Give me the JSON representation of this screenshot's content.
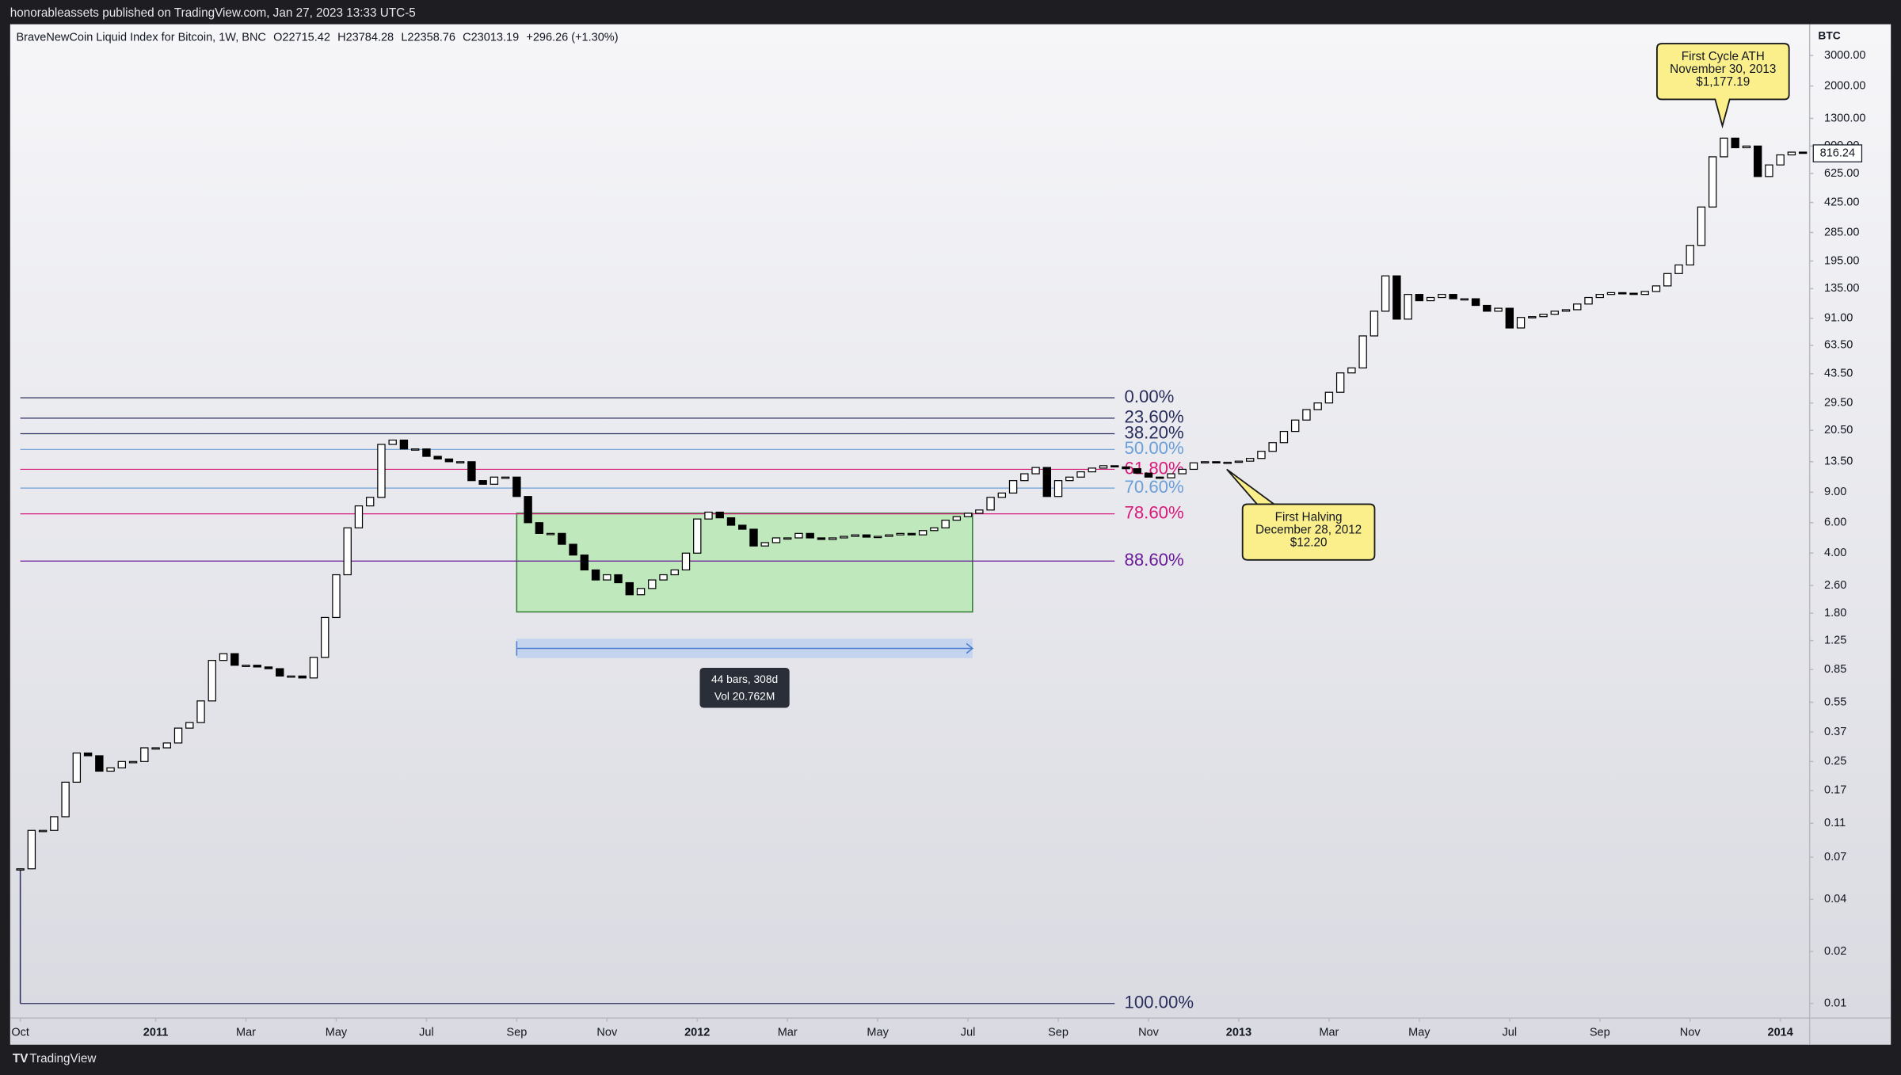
{
  "header": "honorableassets published on TradingView.com, Jan 27, 2023 13:33 UTC-5",
  "footer": "TradingView",
  "chart_data": {
    "type": "candlestick",
    "title": "BraveNewCoin Liquid Index for Bitcoin, 1W, BNC",
    "ohlc_legend": [
      "O22715.42",
      "H23784.28",
      "L22358.76",
      "C23013.19",
      "+296.26 (+1.30%)"
    ],
    "y_axis_label": "BTC",
    "log_scale": true,
    "grid": false,
    "up_color": "#ffffff",
    "down_color": "#000000",
    "series": [
      {
        "values": [
          0.06,
          0.1,
          0.1,
          0.12,
          0.19,
          0.28,
          0.27,
          0.22,
          0.23,
          0.25,
          0.25,
          0.3,
          0.3,
          0.32,
          0.39,
          0.42,
          0.56,
          0.96,
          1.05,
          0.9,
          0.9,
          0.88,
          0.86,
          0.78,
          0.78,
          0.76,
          1.0,
          1.7,
          3.0,
          5.6,
          7.5,
          8.4,
          17,
          18,
          16,
          16,
          14.5,
          14,
          13.5,
          13.5,
          10.5,
          10,
          11,
          11,
          8.5,
          6.0,
          5.2,
          5.2,
          4.5,
          3.9,
          3.2,
          2.8,
          3.0,
          2.7,
          2.3,
          2.5,
          2.8,
          3.0,
          3.2,
          4.0,
          6.3,
          6.9,
          6.4,
          5.8,
          5.5,
          4.4,
          4.6,
          4.9,
          4.9,
          5.2,
          4.9,
          4.8,
          4.9,
          5.0,
          5.1,
          4.95,
          5.0,
          5.1,
          5.2,
          5.1,
          5.4,
          5.6,
          6.2,
          6.5,
          6.8,
          7.1,
          8.4,
          8.9,
          10.5,
          11.5,
          12.5,
          8.5,
          10.5,
          11.0,
          11.8,
          12.4,
          12.8,
          12.6,
          12.3,
          11.6,
          11.0,
          10.9,
          11.5,
          12.2,
          13.3,
          13.5,
          13.4,
          13.4,
          13.6,
          14.1,
          15.5,
          17.4,
          20.2,
          23.5,
          27,
          29.5,
          34,
          44,
          47,
          72,
          100,
          160,
          90,
          125,
          115,
          120,
          125,
          118,
          118,
          108,
          100,
          104,
          80,
          92,
          93,
          96,
          100,
          102,
          110,
          120,
          125,
          128,
          127,
          125,
          130,
          140,
          165,
          185,
          240,
          400,
          780,
          1000,
          880,
          900,
          600,
          700,
          800,
          830,
          816.24
        ]
      }
    ],
    "xlim": [
      -0.9,
      158.6
    ],
    "xticks": [
      {
        "value": 0,
        "label": "Oct"
      },
      {
        "value": 12,
        "label": "2011"
      },
      {
        "value": 20,
        "label": "Mar"
      },
      {
        "value": 28,
        "label": "May"
      },
      {
        "value": 36,
        "label": "Jul"
      },
      {
        "value": 44,
        "label": "Sep"
      },
      {
        "value": 52,
        "label": "Nov"
      },
      {
        "value": 60,
        "label": "2012"
      },
      {
        "value": 68,
        "label": "Mar"
      },
      {
        "value": 76,
        "label": "May"
      },
      {
        "value": 84,
        "label": "Jul"
      },
      {
        "value": 92,
        "label": "Sep"
      },
      {
        "value": 100,
        "label": "Nov"
      },
      {
        "value": 108,
        "label": "2013"
      },
      {
        "value": 116,
        "label": "Mar"
      },
      {
        "value": 124,
        "label": "May"
      },
      {
        "value": 132,
        "label": "Jul"
      },
      {
        "value": 140,
        "label": "Sep"
      },
      {
        "value": 148,
        "label": "Nov"
      },
      {
        "value": 156,
        "label": "2014"
      }
    ],
    "ylim": [
      0.00824,
      4550
    ],
    "yticks": [
      {
        "value": 3000,
        "label": "3000.00"
      },
      {
        "value": 2000,
        "label": "2000.00"
      },
      {
        "value": 1300,
        "label": "1300.00"
      },
      {
        "value": 900,
        "label": "900.00"
      },
      {
        "value": 625,
        "label": "625.00"
      },
      {
        "value": 425,
        "label": "425.00"
      },
      {
        "value": 285,
        "label": "285.00"
      },
      {
        "value": 195,
        "label": "195.00"
      },
      {
        "value": 135,
        "label": "135.00"
      },
      {
        "value": 91,
        "label": "91.00"
      },
      {
        "value": 63.5,
        "label": "63.50"
      },
      {
        "value": 43.5,
        "label": "43.50"
      },
      {
        "value": 29.5,
        "label": "29.50"
      },
      {
        "value": 20.5,
        "label": "20.50"
      },
      {
        "value": 13.5,
        "label": "13.50"
      },
      {
        "value": 9,
        "label": "9.00"
      },
      {
        "value": 6,
        "label": "6.00"
      },
      {
        "value": 4,
        "label": "4.00"
      },
      {
        "value": 2.6,
        "label": "2.60"
      },
      {
        "value": 1.8,
        "label": "1.80"
      },
      {
        "value": 1.25,
        "label": "1.25"
      },
      {
        "value": 0.85,
        "label": "0.85"
      },
      {
        "value": 0.55,
        "label": "0.55"
      },
      {
        "value": 0.37,
        "label": "0.37"
      },
      {
        "value": 0.25,
        "label": "0.25"
      },
      {
        "value": 0.17,
        "label": "0.17"
      },
      {
        "value": 0.11,
        "label": "0.11"
      },
      {
        "value": 0.07,
        "label": "0.07"
      },
      {
        "value": 0.04,
        "label": "0.04"
      },
      {
        "value": 0.02,
        "label": "0.02"
      },
      {
        "value": 0.01,
        "label": "0.01"
      }
    ],
    "fib_x_range": [
      0,
      97
    ],
    "fib_levels": [
      {
        "label": "0.00%",
        "value": 31.6,
        "color": "#2a2e5c"
      },
      {
        "label": "23.60%",
        "value": 24.1,
        "color": "#2a2e5c"
      },
      {
        "label": "38.20%",
        "value": 19.6,
        "color": "#2a2e5c"
      },
      {
        "label": "50.00%",
        "value": 15.9,
        "color": "#6a9fd8"
      },
      {
        "label": "61.80%",
        "value": 12.2,
        "color": "#d81b7a"
      },
      {
        "label": "70.60%",
        "value": 9.5,
        "color": "#6a9fd8"
      },
      {
        "label": "78.60%",
        "value": 6.75,
        "color": "#d81b7a"
      },
      {
        "label": "88.60%",
        "value": 3.6,
        "color": "#6a1b9a"
      },
      {
        "label": "100.00%",
        "value": 0.01,
        "color": "#2a2e5c"
      }
    ],
    "range_box": {
      "x": [
        44,
        84.4
      ],
      "y": [
        1.83,
        6.8
      ],
      "color": "#bfe8bc"
    },
    "measure": {
      "lines": [
        "44 bars, 308d",
        "Vol 20.762M"
      ]
    },
    "annotations": [
      {
        "lines": [
          "First Cycle ATH",
          "November 30, 2013"
        ],
        "price": {
          "value": 1177.19,
          "label": "$1,177.19"
        }
      },
      {
        "lines": [
          "First Halving",
          "December 28, 2012"
        ],
        "price": {
          "value": 12.2,
          "label": "$12.20"
        }
      }
    ]
  }
}
